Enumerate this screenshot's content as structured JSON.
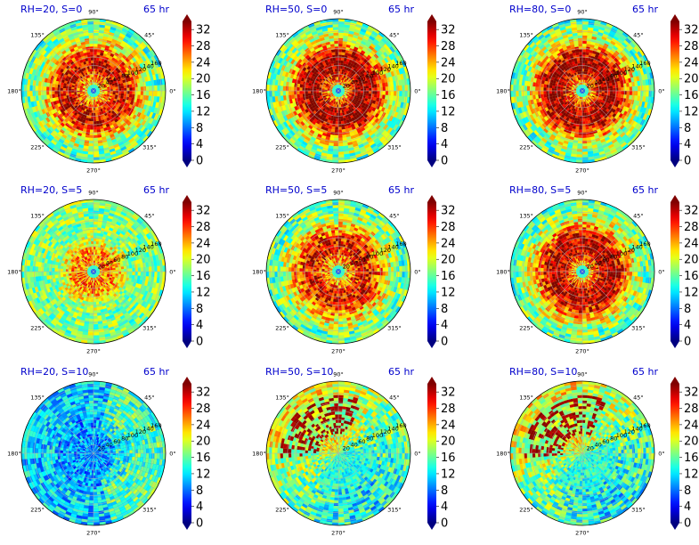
{
  "chart_data": {
    "type": "heatmap",
    "panels": [
      {
        "title": "RH=20, S=0",
        "time": "65 hr",
        "pattern": "ring",
        "intensity": 0.85
      },
      {
        "title": "RH=50, S=0",
        "time": "65 hr",
        "pattern": "ring",
        "intensity": 1.0
      },
      {
        "title": "RH=80, S=0",
        "time": "65 hr",
        "pattern": "ring",
        "intensity": 1.0
      },
      {
        "title": "RH=20, S=5",
        "time": "65 hr",
        "pattern": "weak",
        "intensity": 0.55
      },
      {
        "title": "RH=50, S=5",
        "time": "65 hr",
        "pattern": "ring",
        "intensity": 0.8
      },
      {
        "title": "RH=80, S=5",
        "time": "65 hr",
        "pattern": "ring",
        "intensity": 0.95
      },
      {
        "title": "RH=20, S=10",
        "time": "65 hr",
        "pattern": "low",
        "intensity": 0.2
      },
      {
        "title": "RH=50, S=10",
        "time": "65 hr",
        "pattern": "asym",
        "intensity": 0.45
      },
      {
        "title": "RH=80, S=10",
        "time": "65 hr",
        "pattern": "asym",
        "intensity": 0.55
      }
    ],
    "angular_ticks": [
      "0°",
      "45°",
      "90°",
      "135°",
      "180°",
      "225°",
      "270°",
      "315°"
    ],
    "radial_ticks": [
      20,
      40,
      60,
      80,
      100,
      120,
      140,
      160
    ],
    "colorbar_ticks": [
      0,
      4,
      8,
      12,
      16,
      20,
      24,
      28,
      32
    ],
    "colorbar_range": [
      0,
      34
    ],
    "colormap": "jet"
  }
}
